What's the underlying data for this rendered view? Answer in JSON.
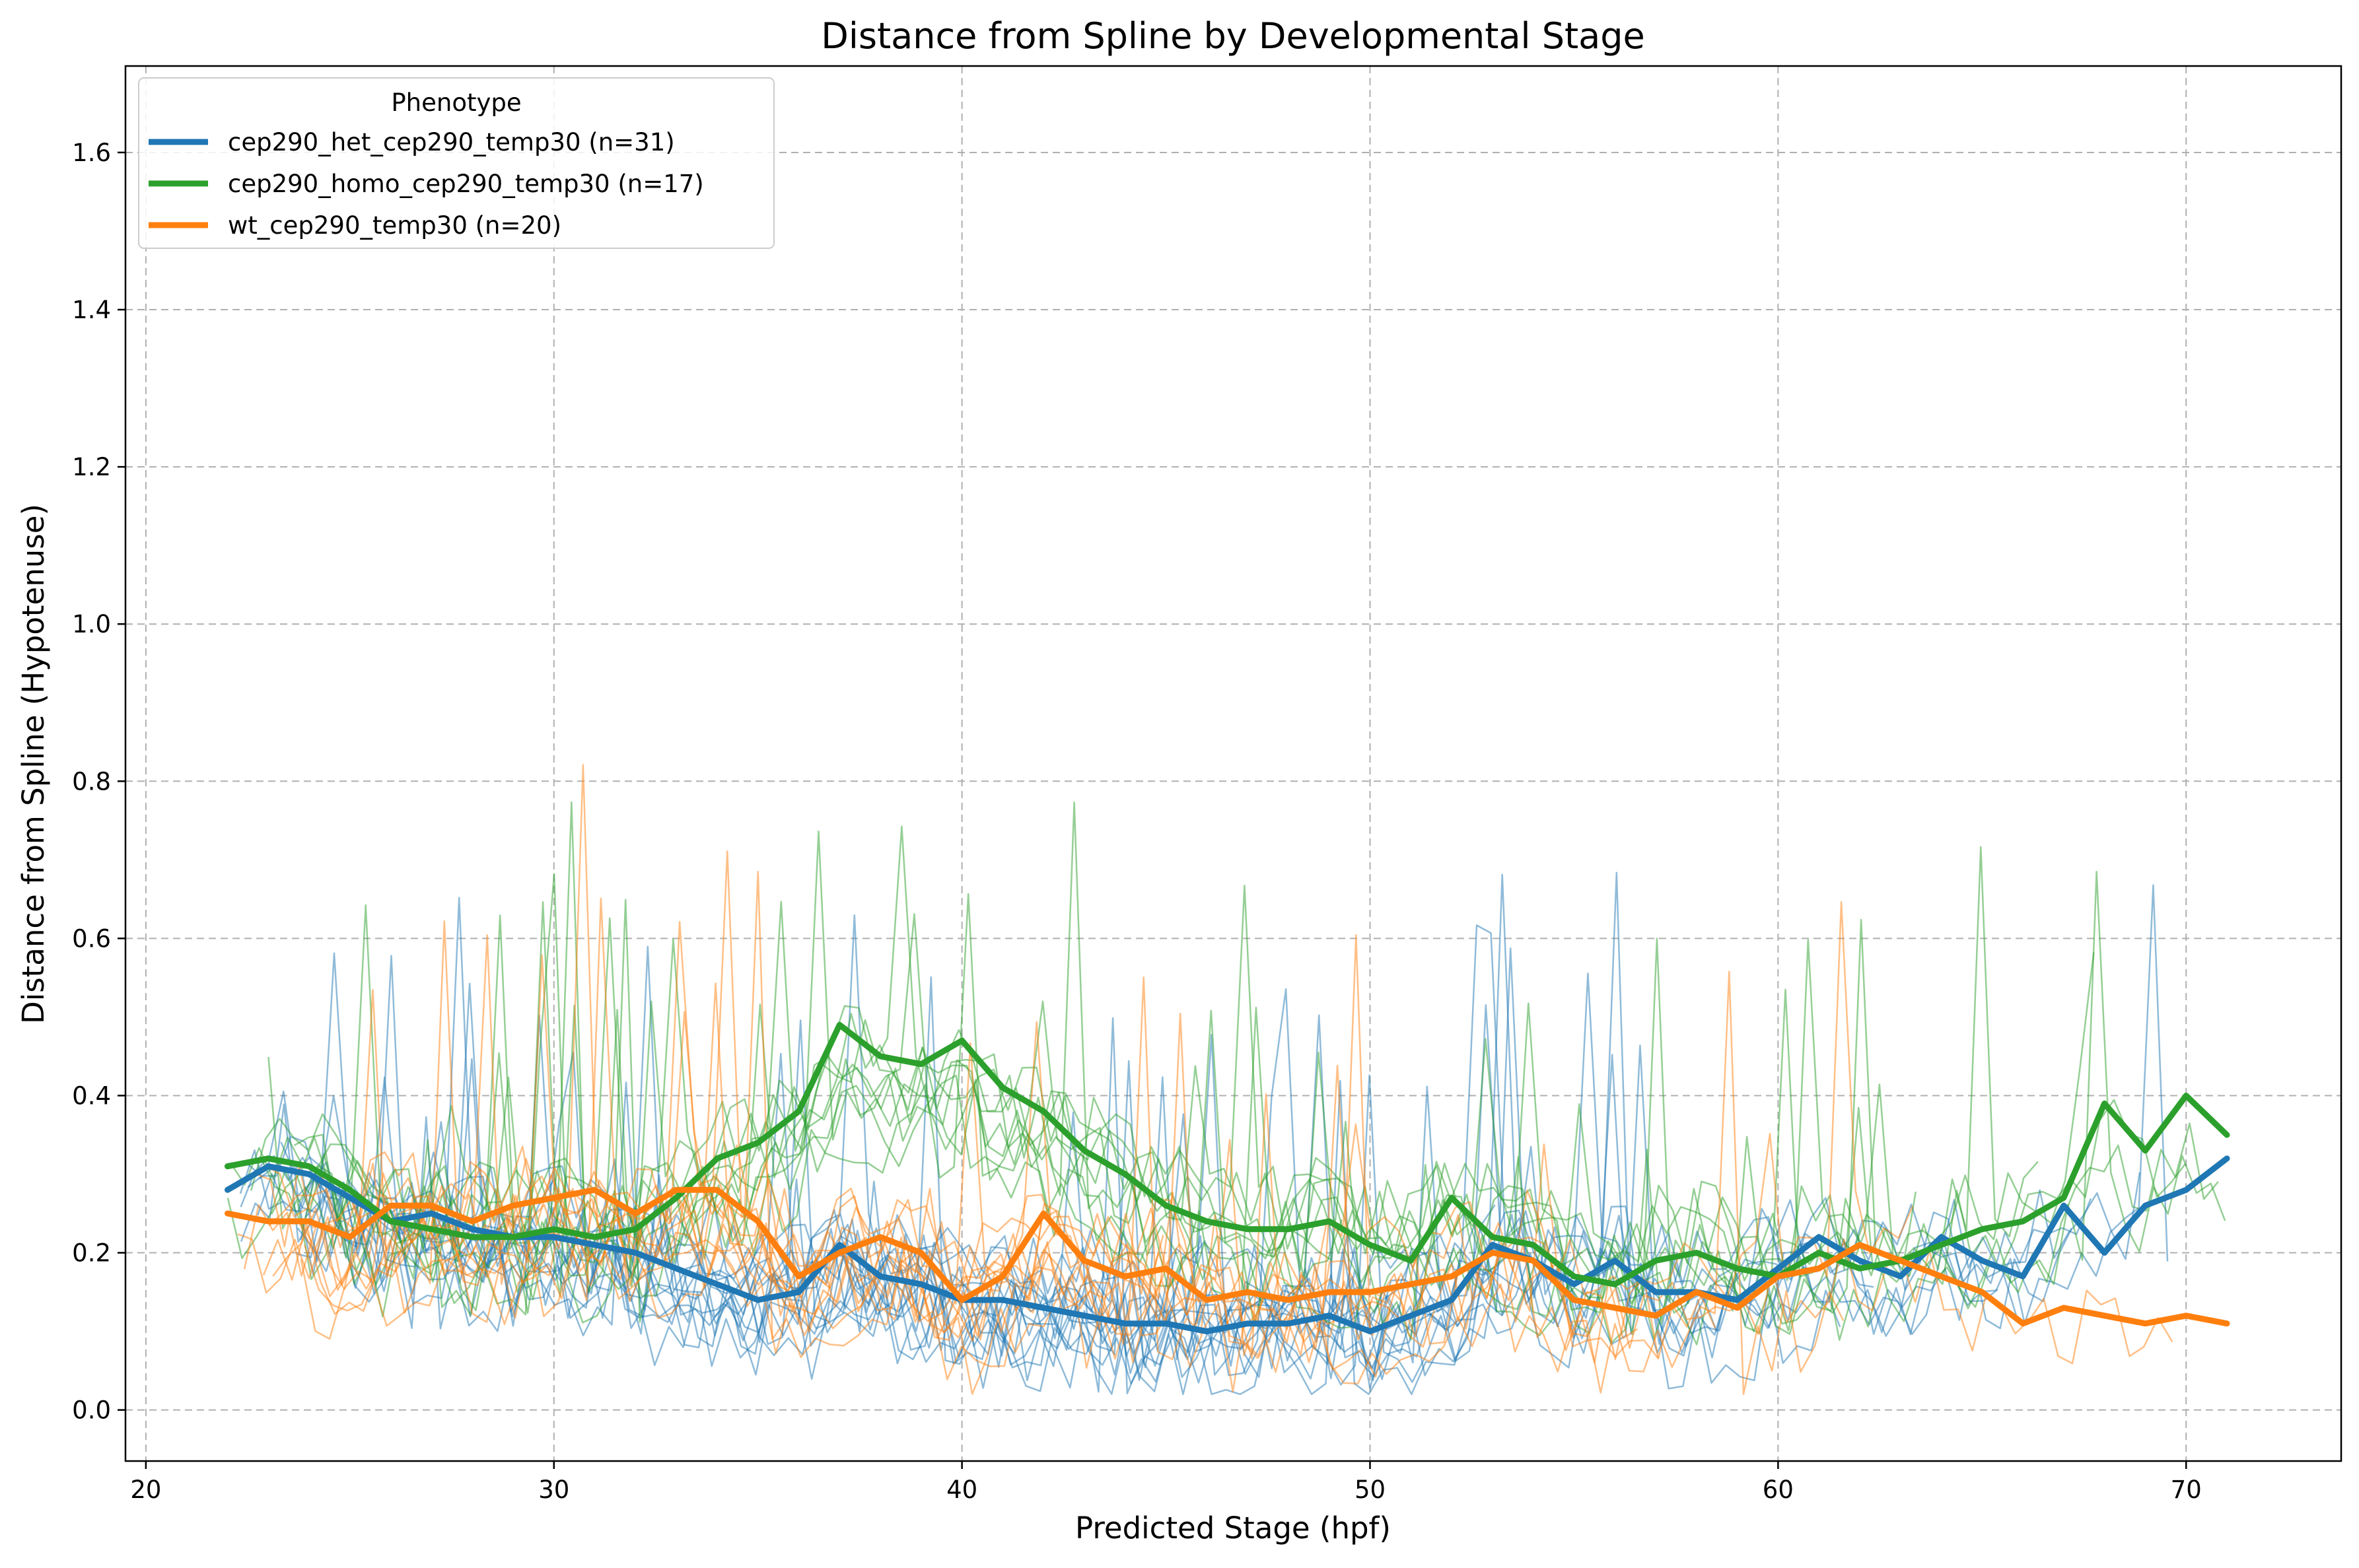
{
  "chart_data": {
    "type": "line",
    "title": "Distance from Spline by Developmental Stage",
    "xlabel": "Predicted Stage (hpf)",
    "ylabel": "Distance from Spline (Hypotenuse)",
    "xlim": [
      19.5,
      73.8
    ],
    "ylim": [
      -0.065,
      1.71
    ],
    "xticks": [
      20,
      30,
      40,
      50,
      60,
      70
    ],
    "yticks": [
      0.0,
      0.2,
      0.4,
      0.6,
      0.8,
      1.0,
      1.2,
      1.4,
      1.6
    ],
    "grid": true,
    "legend": {
      "title": "Phenotype",
      "position": "top-left"
    },
    "series": [
      {
        "name": "cep290_het_cep290_temp30 (n=31)",
        "color": "#1f77b4",
        "x": [
          22,
          23,
          24,
          25,
          26,
          27,
          28,
          29,
          30,
          31,
          32,
          33,
          34,
          35,
          36,
          37,
          38,
          39,
          40,
          41,
          42,
          43,
          44,
          45,
          46,
          47,
          48,
          49,
          50,
          51,
          52,
          53,
          54,
          55,
          56,
          57,
          58,
          59,
          60,
          61,
          62,
          63,
          64,
          65,
          66,
          67,
          68,
          69,
          70,
          71
        ],
        "y": [
          0.28,
          0.31,
          0.3,
          0.27,
          0.24,
          0.25,
          0.23,
          0.22,
          0.22,
          0.21,
          0.2,
          0.18,
          0.16,
          0.14,
          0.15,
          0.21,
          0.17,
          0.16,
          0.14,
          0.14,
          0.13,
          0.12,
          0.11,
          0.11,
          0.1,
          0.11,
          0.11,
          0.12,
          0.1,
          0.12,
          0.14,
          0.21,
          0.19,
          0.16,
          0.19,
          0.15,
          0.15,
          0.14,
          0.18,
          0.22,
          0.19,
          0.17,
          0.22,
          0.19,
          0.17,
          0.26,
          0.2,
          0.26,
          0.28,
          0.32
        ]
      },
      {
        "name": "cep290_homo_cep290_temp30 (n=17)",
        "color": "#2ca02c",
        "x": [
          22,
          23,
          24,
          25,
          26,
          27,
          28,
          29,
          30,
          31,
          32,
          33,
          34,
          35,
          36,
          37,
          38,
          39,
          40,
          41,
          42,
          43,
          44,
          45,
          46,
          47,
          48,
          49,
          50,
          51,
          52,
          53,
          54,
          55,
          56,
          57,
          58,
          59,
          60,
          61,
          62,
          63,
          64,
          65,
          66,
          67,
          68,
          69,
          70,
          71
        ],
        "y": [
          0.31,
          0.32,
          0.31,
          0.28,
          0.24,
          0.23,
          0.22,
          0.22,
          0.23,
          0.22,
          0.23,
          0.27,
          0.32,
          0.34,
          0.38,
          0.49,
          0.45,
          0.44,
          0.47,
          0.41,
          0.38,
          0.33,
          0.3,
          0.26,
          0.24,
          0.23,
          0.23,
          0.24,
          0.21,
          0.19,
          0.27,
          0.22,
          0.21,
          0.17,
          0.16,
          0.19,
          0.2,
          0.18,
          0.17,
          0.2,
          0.18,
          0.19,
          0.21,
          0.23,
          0.24,
          0.27,
          0.39,
          0.33,
          0.4,
          0.35
        ]
      },
      {
        "name": "wt_cep290_temp30 (n=20)",
        "color": "#ff7f0e",
        "x": [
          22,
          23,
          24,
          25,
          26,
          27,
          28,
          29,
          30,
          31,
          32,
          33,
          34,
          35,
          36,
          37,
          38,
          39,
          40,
          41,
          42,
          43,
          44,
          45,
          46,
          47,
          48,
          49,
          50,
          51,
          52,
          53,
          54,
          55,
          56,
          57,
          58,
          59,
          60,
          61,
          62,
          63,
          64,
          65,
          66,
          67,
          68,
          69,
          70,
          71
        ],
        "y": [
          0.25,
          0.24,
          0.24,
          0.22,
          0.26,
          0.26,
          0.24,
          0.26,
          0.27,
          0.28,
          0.25,
          0.28,
          0.28,
          0.24,
          0.17,
          0.2,
          0.22,
          0.2,
          0.14,
          0.17,
          0.25,
          0.19,
          0.17,
          0.18,
          0.14,
          0.15,
          0.14,
          0.15,
          0.15,
          0.16,
          0.17,
          0.2,
          0.19,
          0.14,
          0.13,
          0.12,
          0.15,
          0.13,
          0.17,
          0.18,
          0.21,
          0.19,
          0.17,
          0.15,
          0.11,
          0.13,
          0.12,
          0.11,
          0.12,
          0.11
        ]
      }
    ]
  }
}
